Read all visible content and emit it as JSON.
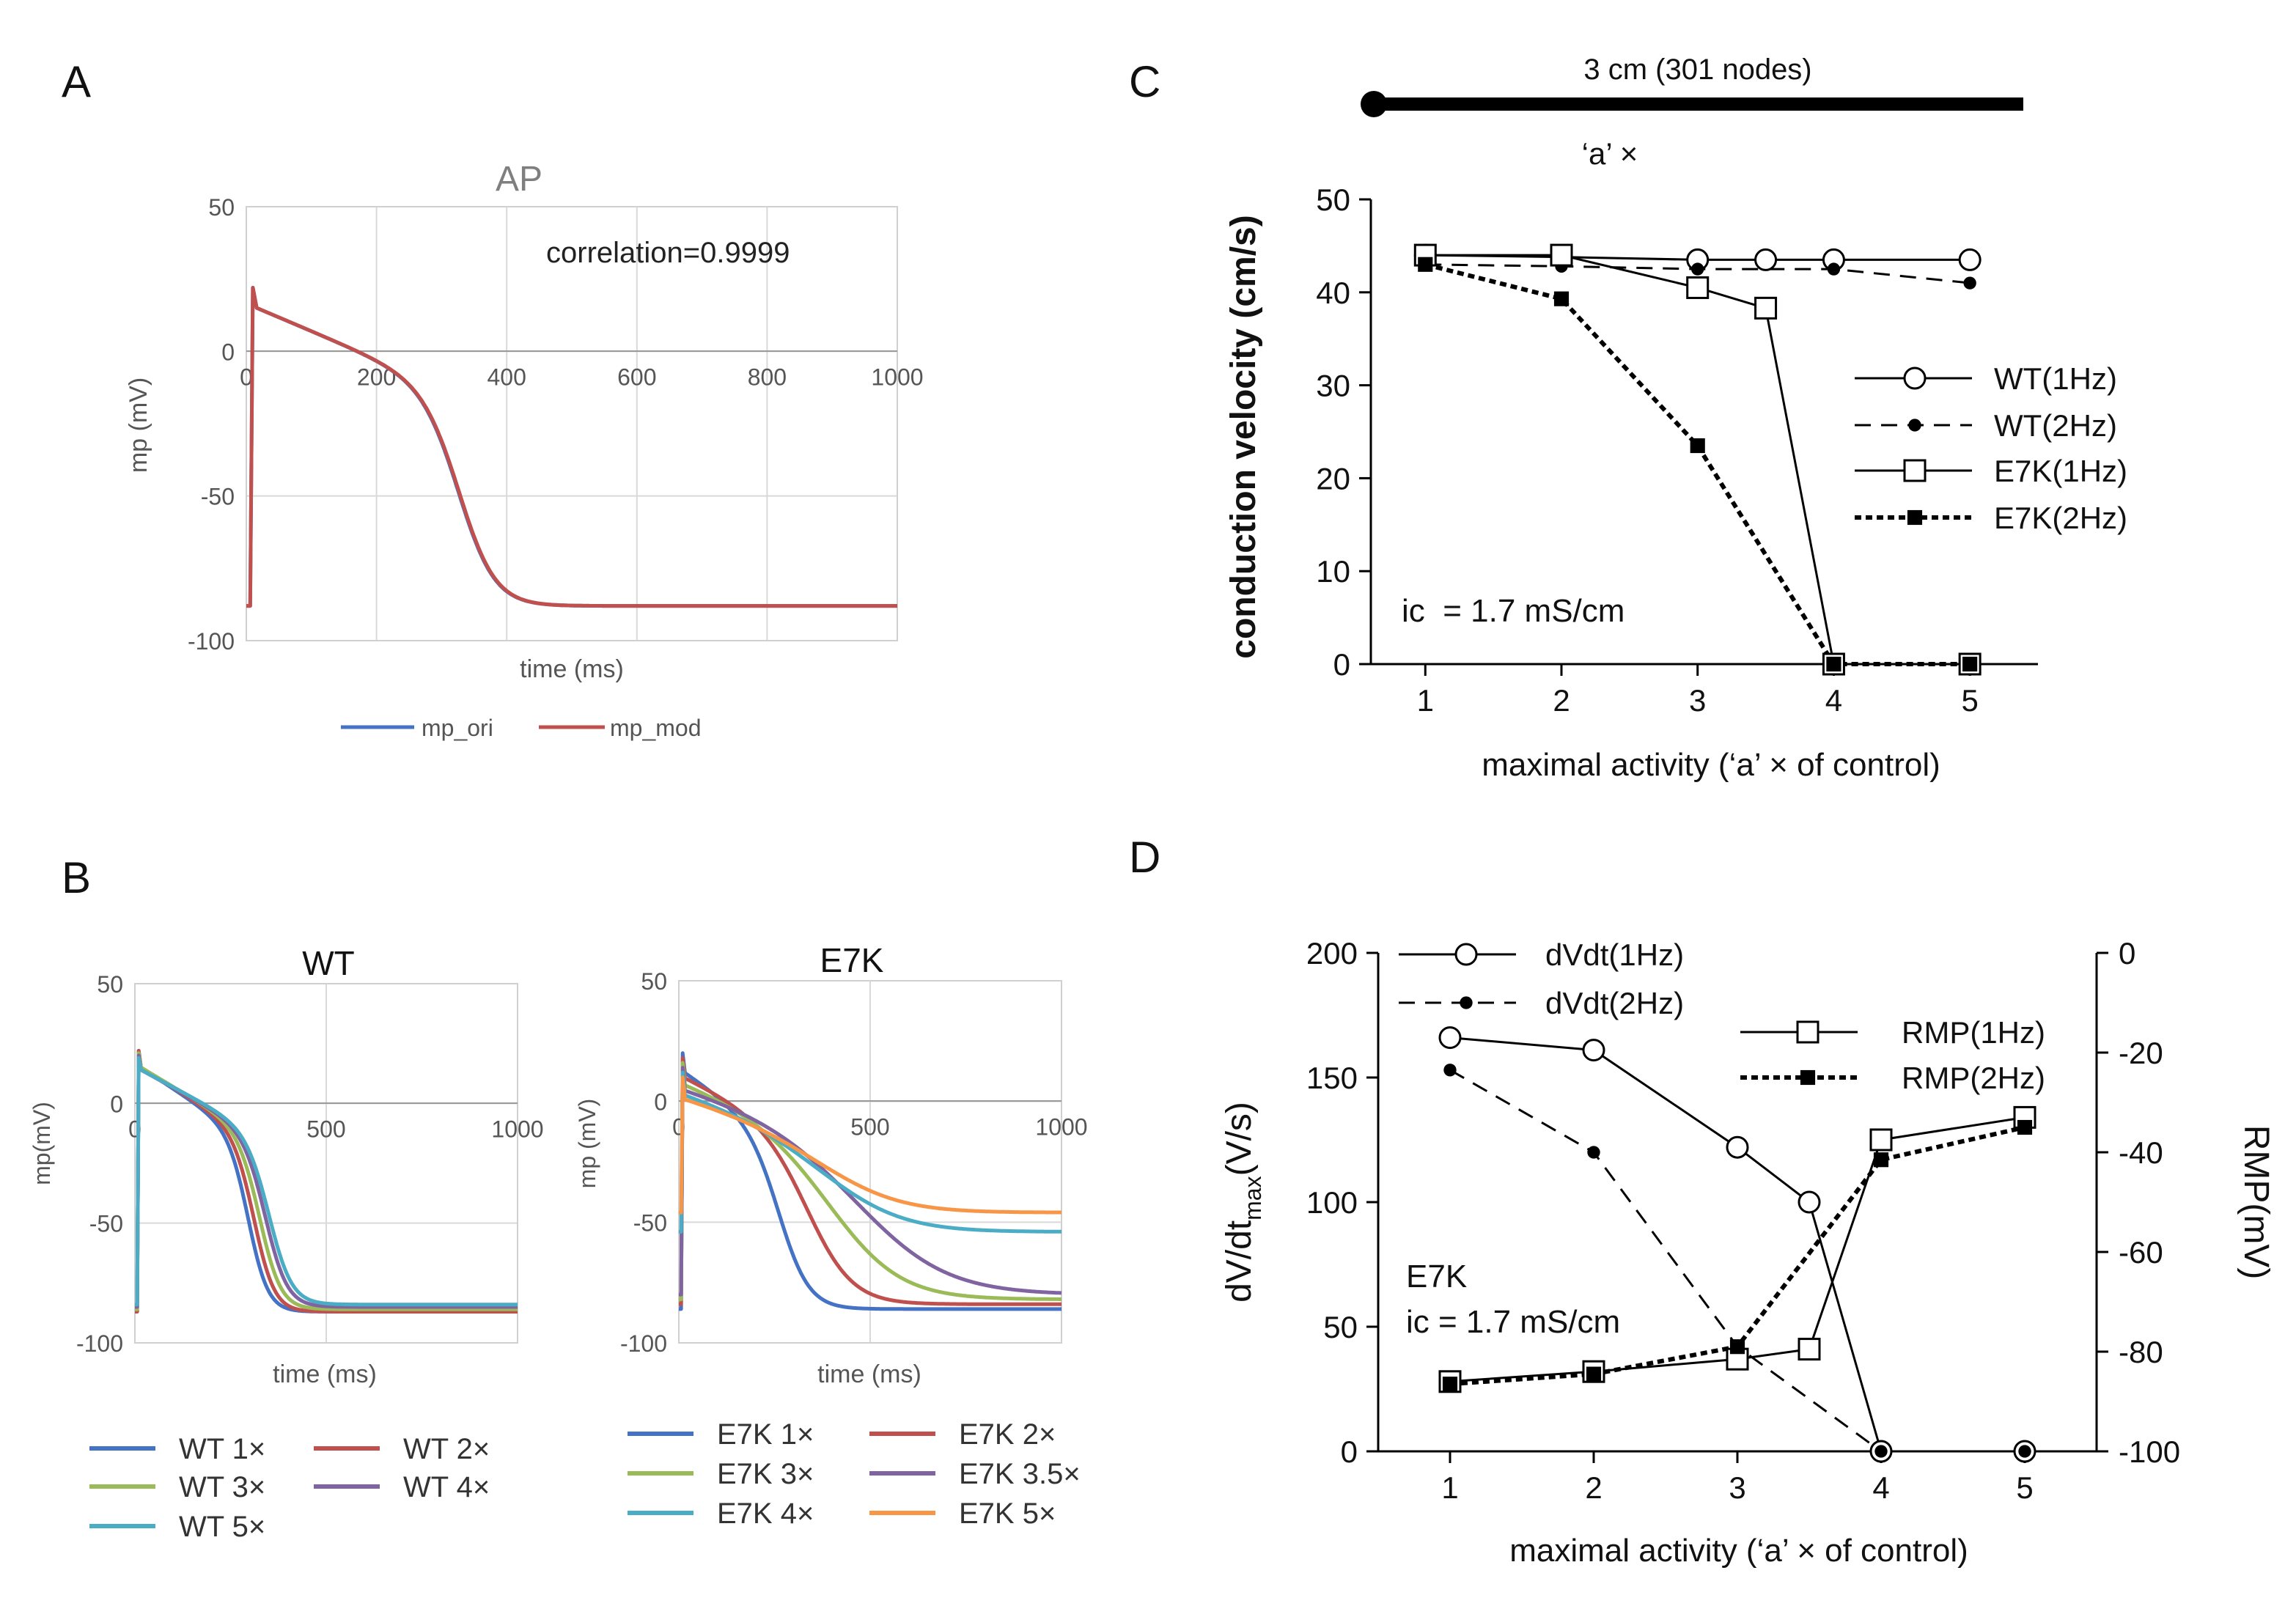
{
  "panel_labels": {
    "a": "A",
    "b": "B",
    "c": "C",
    "d": "D"
  },
  "chart_data": [
    {
      "id": "A",
      "type": "line",
      "title": "AP",
      "annotation": "correlation=0.9999",
      "xlabel": "time (ms)",
      "ylabel": "mp (mV)",
      "xlim": [
        0,
        1000
      ],
      "ylim": [
        -100,
        50
      ],
      "xticks": [
        "0",
        "200",
        "400",
        "600",
        "800",
        "1000"
      ],
      "yticks": [
        "50",
        "0",
        "-50",
        "-100"
      ],
      "legend": [
        "mp_ori",
        "mp_mod"
      ],
      "series": [
        {
          "name": "mp_ori",
          "color": "#4472c4",
          "params": {
            "peak": 22,
            "plateau": 15,
            "mid": 330,
            "width": 28,
            "rest": -88
          }
        },
        {
          "name": "mp_mod",
          "color": "#c0504d",
          "params": {
            "peak": 22,
            "plateau": 15,
            "mid": 331,
            "width": 28,
            "rest": -88
          }
        }
      ]
    },
    {
      "id": "B-WT",
      "type": "line",
      "title": "WT",
      "xlabel": "time (ms)",
      "ylabel": "mp(mV)",
      "xlim": [
        0,
        1000
      ],
      "ylim": [
        -100,
        50
      ],
      "xticks": [
        "0",
        "500",
        "1000"
      ],
      "yticks": [
        "50",
        "0",
        "-50",
        "-100"
      ],
      "legend": [
        "WT 1×",
        "WT 2×",
        "WT 3×",
        "WT 4×",
        "WT 5×"
      ],
      "series": [
        {
          "name": "WT 1×",
          "color": "#4472c4",
          "params": {
            "peak": 22,
            "plateau": 15,
            "mid": 300,
            "width": 26,
            "rest": -87
          }
        },
        {
          "name": "WT 2×",
          "color": "#c0504d",
          "params": {
            "peak": 22,
            "plateau": 15,
            "mid": 315,
            "width": 27,
            "rest": -87
          }
        },
        {
          "name": "WT 3×",
          "color": "#9bbb59",
          "params": {
            "peak": 21,
            "plateau": 15,
            "mid": 330,
            "width": 28,
            "rest": -86
          }
        },
        {
          "name": "WT 4×",
          "color": "#8064a2",
          "params": {
            "peak": 20,
            "plateau": 14,
            "mid": 345,
            "width": 29,
            "rest": -85
          }
        },
        {
          "name": "WT 5×",
          "color": "#4bacc6",
          "params": {
            "peak": 19,
            "plateau": 14,
            "mid": 355,
            "width": 30,
            "rest": -84
          }
        }
      ]
    },
    {
      "id": "B-E7K",
      "type": "line",
      "title": "E7K",
      "xlabel": "time (ms)",
      "ylabel": "mp (mV)",
      "xlim": [
        0,
        1000
      ],
      "ylim": [
        -100,
        50
      ],
      "xticks": [
        "0",
        "500",
        "1000"
      ],
      "yticks": [
        "50",
        "0",
        "-50",
        "-100"
      ],
      "legend": [
        "E7K 1×",
        "E7K 2×",
        "E7K 3×",
        "E7K 3.5×",
        "E7K 4×",
        "E7K 5×"
      ],
      "series": [
        {
          "name": "E7K 1×",
          "color": "#4472c4",
          "params": {
            "peak": 20,
            "plateau": 12,
            "mid": 270,
            "width": 40,
            "rest": -86
          }
        },
        {
          "name": "E7K 2×",
          "color": "#c0504d",
          "params": {
            "peak": 18,
            "plateau": 10,
            "mid": 350,
            "width": 60,
            "rest": -84
          }
        },
        {
          "name": "E7K 3×",
          "color": "#9bbb59",
          "params": {
            "peak": 16,
            "plateau": 8,
            "mid": 420,
            "width": 95,
            "rest": -82
          }
        },
        {
          "name": "E7K 3.5×",
          "color": "#8064a2",
          "params": {
            "peak": 14,
            "plateau": 6,
            "mid": 500,
            "width": 120,
            "rest": -80
          }
        },
        {
          "name": "E7K 4×",
          "color": "#4bacc6",
          "params": {
            "peak": 12,
            "plateau": 4,
            "mid": 420,
            "width": 110,
            "rest": -54
          }
        },
        {
          "name": "E7K 5×",
          "color": "#f79646",
          "params": {
            "peak": 10,
            "plateau": 2,
            "mid": 420,
            "width": 110,
            "rest": -46
          }
        }
      ]
    },
    {
      "id": "C",
      "type": "line",
      "header": "3 cm (301 nodes)",
      "a_label": "‘a’ ×",
      "annotation": "ic  = 1.7 mS/cm",
      "xlabel": "maximal activity (‘a’ × of control)",
      "ylabel": "conduction velocity (cm/s)",
      "xlim": [
        0.6,
        5.5
      ],
      "ylim": [
        0,
        50
      ],
      "xticks": [
        1,
        2,
        3,
        4,
        5
      ],
      "yticks": [
        0,
        10,
        20,
        30,
        40,
        50
      ],
      "series": [
        {
          "name": "WT(1Hz)",
          "marker": "open-circle",
          "dash": "solid",
          "x": [
            1,
            2,
            3,
            3.5,
            4,
            5
          ],
          "y": [
            44,
            43.8,
            43.5,
            43.5,
            43.5,
            43.5
          ]
        },
        {
          "name": "WT(2Hz)",
          "marker": "filled-circle",
          "dash": "dashed",
          "x": [
            1,
            2,
            3,
            4,
            5
          ],
          "y": [
            43,
            42.8,
            42.5,
            42.5,
            41
          ]
        },
        {
          "name": "E7K(1Hz)",
          "marker": "open-square",
          "dash": "solid",
          "x": [
            1,
            2,
            3,
            3.5,
            4,
            5
          ],
          "y": [
            44,
            44,
            40.5,
            38.3,
            0,
            0
          ]
        },
        {
          "name": "E7K(2Hz)",
          "marker": "filled-square",
          "dash": "dotted",
          "x": [
            1,
            2,
            3,
            4,
            5
          ],
          "y": [
            43,
            39.3,
            23.5,
            0,
            0
          ]
        }
      ]
    },
    {
      "id": "D",
      "type": "line",
      "annotation_line1": "E7K",
      "annotation_line2": "ic = 1.7 mS/cm",
      "xlabel": "maximal activity (‘a’ × of control)",
      "ylabel_main": "dV/dt",
      "ylabel_sub": "max",
      "ylabel_unit": "(V/s)",
      "y2label": "RMP(mV)",
      "xlim": [
        0.5,
        5.5
      ],
      "ylim": [
        0,
        200
      ],
      "y2lim": [
        -100,
        0
      ],
      "xticks": [
        1,
        2,
        3,
        4,
        5
      ],
      "yticks": [
        0,
        50,
        100,
        150,
        200
      ],
      "y2ticks": [
        -100,
        -80,
        -60,
        -40,
        -20,
        0
      ],
      "series": [
        {
          "name": "dVdt(1Hz)",
          "axis": "left",
          "marker": "open-circle",
          "dash": "solid",
          "x": [
            1,
            2,
            3,
            3.5,
            4,
            5
          ],
          "y": [
            166,
            161,
            122,
            100,
            0,
            0
          ]
        },
        {
          "name": "dVdt(2Hz)",
          "axis": "left",
          "marker": "filled-circle",
          "dash": "dashed",
          "x": [
            1,
            2,
            3,
            4,
            5
          ],
          "y": [
            153,
            120,
            42,
            0,
            0
          ]
        },
        {
          "name": "RMP(1Hz)",
          "axis": "right",
          "marker": "open-square",
          "dash": "solid",
          "x": [
            1,
            2,
            3,
            3.5,
            4,
            5
          ],
          "y": [
            -86,
            -84,
            -81.5,
            -79.5,
            -37.5,
            -33
          ]
        },
        {
          "name": "RMP(2Hz)",
          "axis": "right",
          "marker": "filled-square",
          "dash": "dotted",
          "x": [
            1,
            2,
            3,
            4,
            5
          ],
          "y": [
            -86.5,
            -84.5,
            -79,
            -41.5,
            -35
          ]
        }
      ]
    }
  ]
}
